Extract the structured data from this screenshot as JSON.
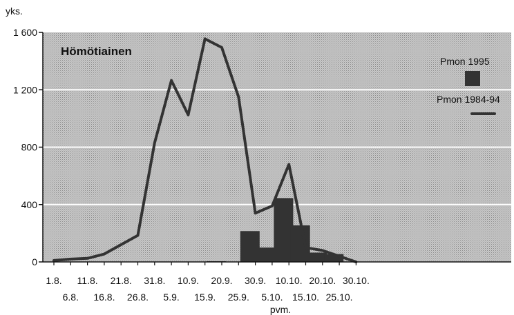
{
  "chart_data": {
    "type": "bar+line",
    "title": "Hömötiainen",
    "ylabel": "yks.",
    "xlabel": "pvm.",
    "ylim": [
      0,
      1600
    ],
    "yticks": [
      0,
      400,
      800,
      1200,
      1600
    ],
    "ytick_labels": [
      "0",
      "400",
      "800",
      "1 200",
      "1 600"
    ],
    "categories": [
      "1.8.",
      "6.8.",
      "11.8.",
      "16.8.",
      "21.8.",
      "26.8.",
      "31.8.",
      "5.9.",
      "10.9.",
      "15.9.",
      "20.9.",
      "25.9.",
      "30.9.",
      "5.10.",
      "10.10.",
      "15.10.",
      "20.10.",
      "25.10.",
      "30.10."
    ],
    "grid": true,
    "legend_position": "top-right",
    "series": [
      {
        "name": "Pmon 1995",
        "kind": "bar",
        "color": "#333333",
        "values": [
          0,
          0,
          0,
          0,
          0,
          0,
          0,
          0,
          0,
          5,
          0,
          215,
          100,
          445,
          255,
          65,
          55,
          0,
          0
        ]
      },
      {
        "name": "Pmon 1984-94",
        "kind": "line",
        "color": "#333333",
        "values": [
          10,
          20,
          25,
          55,
          120,
          185,
          830,
          1265,
          1025,
          1555,
          1495,
          1150,
          340,
          390,
          680,
          100,
          80,
          40,
          0
        ]
      }
    ]
  }
}
